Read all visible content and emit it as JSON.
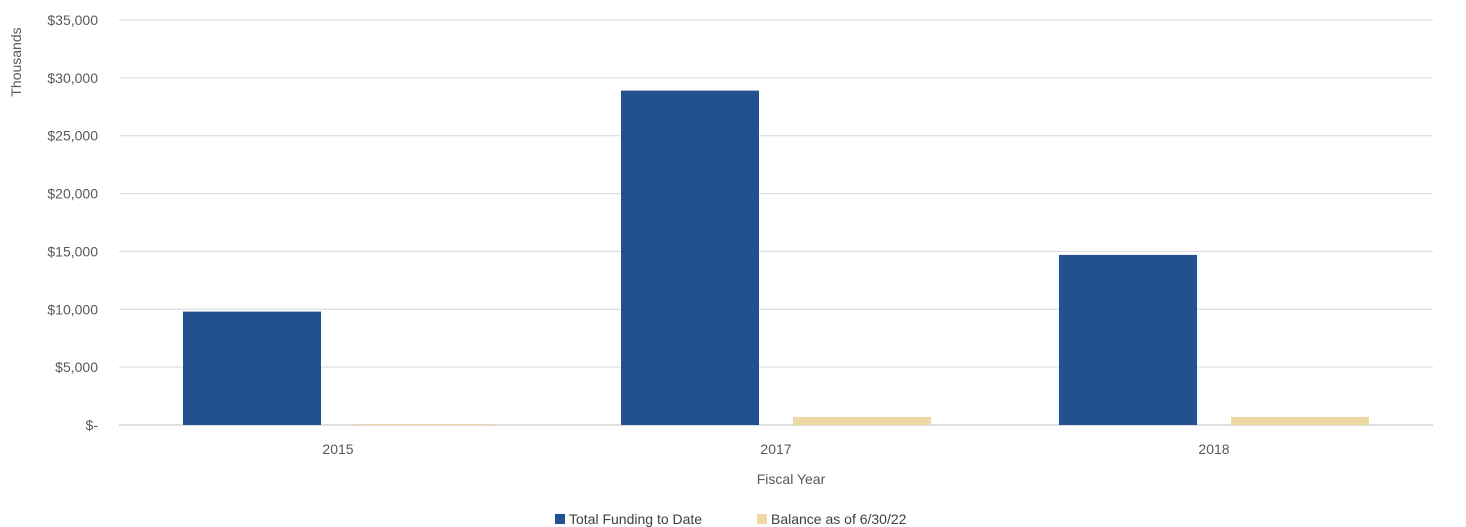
{
  "chart_data": {
    "type": "bar",
    "title": "",
    "xlabel": "Fiscal Year",
    "ylabel": "Thousands",
    "categories": [
      "2015",
      "2017",
      "2018"
    ],
    "series": [
      {
        "name": "Total Funding to Date",
        "color": "#23508F",
        "values": [
          9800,
          28900,
          14700
        ]
      },
      {
        "name": "Balance as of 6/30/22",
        "color": "#EDD9A6",
        "values": [
          0,
          700,
          700
        ]
      }
    ],
    "ylim": [
      0,
      35000
    ],
    "yticks": [
      0,
      5000,
      10000,
      15000,
      20000,
      25000,
      30000,
      35000
    ],
    "ytick_labels": [
      "$-",
      "$5,000",
      "$10,000",
      "$15,000",
      "$20,000",
      "$25,000",
      "$30,000",
      "$35,000"
    ],
    "grid": true,
    "legend": "bottom"
  }
}
